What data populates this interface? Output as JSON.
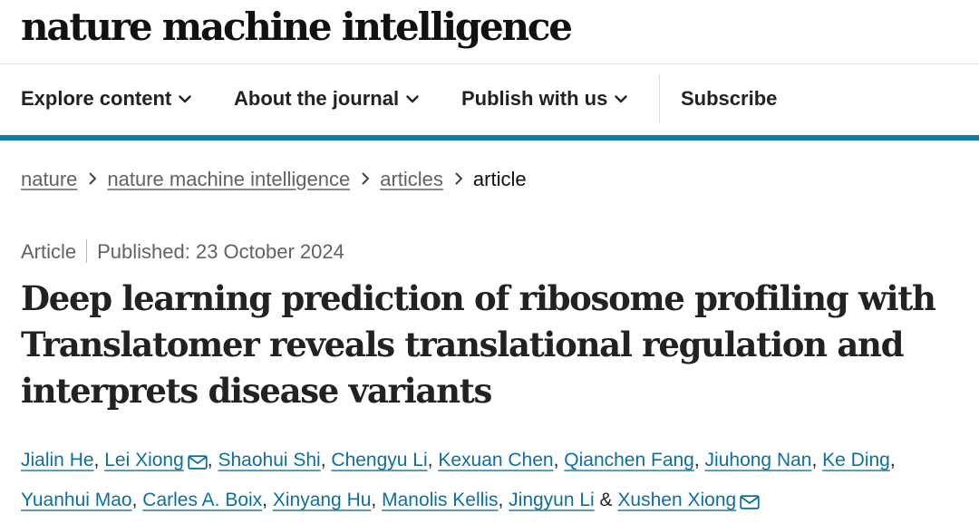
{
  "journal": {
    "name": "nature machine intelligence"
  },
  "nav": {
    "items": [
      {
        "label": "Explore content",
        "dropdown": true
      },
      {
        "label": "About the journal",
        "dropdown": true
      },
      {
        "label": "Publish with us",
        "dropdown": true
      }
    ],
    "subscribe_label": "Subscribe"
  },
  "colors": {
    "accent_bar": "#0f7ea3",
    "link": "#0c6fa3"
  },
  "breadcrumb": [
    {
      "label": "nature",
      "link": true
    },
    {
      "label": "nature machine intelligence",
      "link": true
    },
    {
      "label": "articles",
      "link": true
    },
    {
      "label": "article",
      "link": false
    }
  ],
  "article": {
    "type": "Article",
    "published": "Published: 23 October 2024",
    "title": "Deep learning prediction of ribosome profiling with Translatomer reveals translational regulation and interprets disease variants",
    "authors": [
      {
        "name": "Jialin He",
        "corresponding": false
      },
      {
        "name": "Lei Xiong",
        "corresponding": true
      },
      {
        "name": "Shaohui Shi",
        "corresponding": false
      },
      {
        "name": "Chengyu Li",
        "corresponding": false
      },
      {
        "name": "Kexuan Chen",
        "corresponding": false
      },
      {
        "name": "Qianchen Fang",
        "corresponding": false
      },
      {
        "name": "Jiuhong Nan",
        "corresponding": false
      },
      {
        "name": "Ke Ding",
        "corresponding": false
      },
      {
        "name": "Yuanhui Mao",
        "corresponding": false
      },
      {
        "name": "Carles A. Boix",
        "corresponding": false
      },
      {
        "name": "Xinyang Hu",
        "corresponding": false
      },
      {
        "name": "Manolis Kellis",
        "corresponding": false
      },
      {
        "name": "Jingyun Li",
        "corresponding": false
      },
      {
        "name": "Xushen Xiong",
        "corresponding": true
      }
    ],
    "author_separator": ",",
    "last_author_joiner": "&"
  },
  "icons": {
    "dropdown": "chevron-down-icon",
    "breadcrumb_separator": "chevron-right-icon",
    "corresponding_author": "mail-icon"
  }
}
